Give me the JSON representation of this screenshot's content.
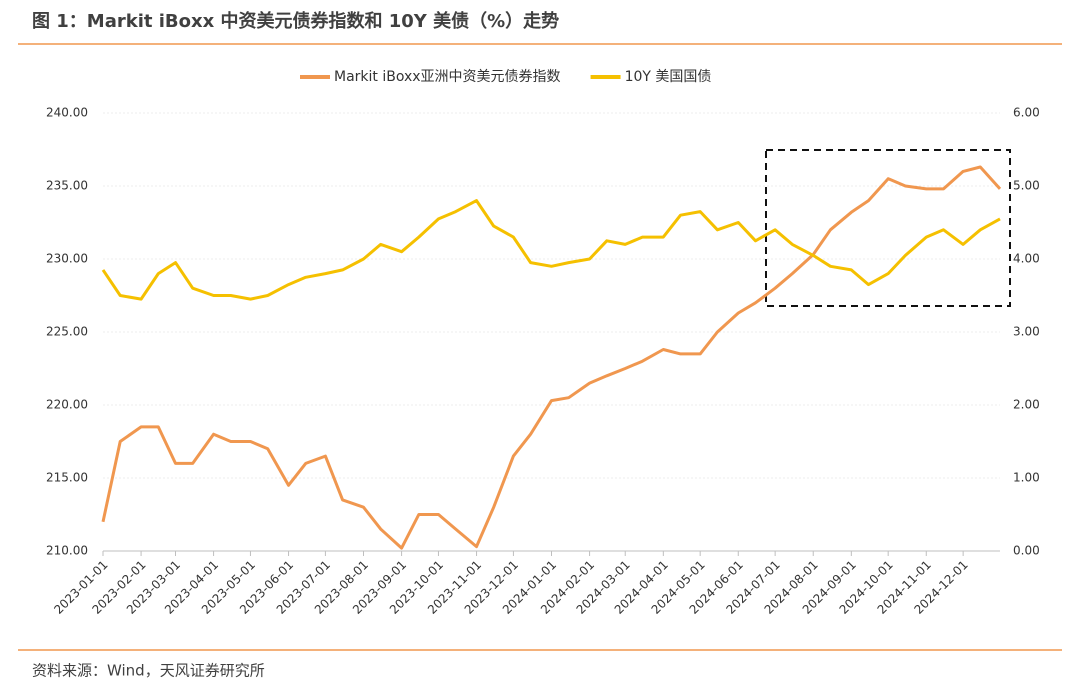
{
  "chart_data": {
    "type": "line",
    "title": "图 1：Markit iBoxx 中资美元债券指数和 10Y 美债（%）走势",
    "source": "资料来源：Wind，天风证券研究所",
    "x": [
      "2023-01-01",
      "2023-01-15",
      "2023-02-01",
      "2023-02-15",
      "2023-03-01",
      "2023-03-15",
      "2023-04-01",
      "2023-04-15",
      "2023-05-01",
      "2023-05-15",
      "2023-06-01",
      "2023-06-15",
      "2023-07-01",
      "2023-07-15",
      "2023-08-01",
      "2023-08-15",
      "2023-09-01",
      "2023-09-15",
      "2023-10-01",
      "2023-10-15",
      "2023-11-01",
      "2023-11-15",
      "2023-12-01",
      "2023-12-15",
      "2024-01-01",
      "2024-01-15",
      "2024-02-01",
      "2024-02-15",
      "2024-03-01",
      "2024-03-15",
      "2024-04-01",
      "2024-04-15",
      "2024-05-01",
      "2024-05-15",
      "2024-06-01",
      "2024-06-15",
      "2024-07-01",
      "2024-07-15",
      "2024-08-01",
      "2024-08-15",
      "2024-09-01",
      "2024-09-15",
      "2024-10-01",
      "2024-10-15",
      "2024-11-01",
      "2024-11-15",
      "2024-12-01",
      "2024-12-15",
      "2024-12-31"
    ],
    "series": [
      {
        "name": "Markit iBoxx亚洲中资美元债券指数",
        "color": "#f0974f",
        "axis": "y",
        "values": [
          212,
          217.5,
          218.5,
          218.5,
          216,
          216,
          218,
          217.5,
          217.5,
          217,
          214.5,
          216,
          216.5,
          213.5,
          213,
          211.5,
          210.2,
          212.5,
          212.5,
          211.5,
          210.3,
          213,
          216.5,
          218,
          220.3,
          220.5,
          221.5,
          222,
          222.5,
          223,
          223.8,
          223.5,
          223.5,
          225,
          226.3,
          227,
          228,
          229,
          230.3,
          232,
          233.2,
          234,
          235.5,
          235,
          234.8,
          234.8,
          236,
          236.3,
          234.8
        ]
      },
      {
        "name": "10Y 美国国债",
        "color": "#f5c000",
        "axis": "y2",
        "values": [
          3.85,
          3.5,
          3.45,
          3.8,
          3.95,
          3.6,
          3.5,
          3.5,
          3.45,
          3.5,
          3.65,
          3.75,
          3.8,
          3.85,
          4.0,
          4.2,
          4.1,
          4.3,
          4.55,
          4.65,
          4.8,
          4.45,
          4.3,
          3.95,
          3.9,
          3.95,
          4.0,
          4.25,
          4.2,
          4.3,
          4.3,
          4.6,
          4.65,
          4.4,
          4.5,
          4.25,
          4.4,
          4.2,
          4.05,
          3.9,
          3.85,
          3.65,
          3.8,
          4.05,
          4.3,
          4.4,
          4.2,
          4.4,
          4.55
        ]
      }
    ],
    "xlim": [
      "2023-01-01",
      "2024-12-31"
    ],
    "xticks": [
      "2023-01-01",
      "2023-02-01",
      "2023-03-01",
      "2023-04-01",
      "2023-05-01",
      "2023-06-01",
      "2023-07-01",
      "2023-08-01",
      "2023-09-01",
      "2023-10-01",
      "2023-11-01",
      "2023-12-01",
      "2024-01-01",
      "2024-02-01",
      "2024-03-01",
      "2024-04-01",
      "2024-05-01",
      "2024-06-01",
      "2024-07-01",
      "2024-08-01",
      "2024-09-01",
      "2024-10-01",
      "2024-11-01",
      "2024-12-01"
    ],
    "ylim": [
      210,
      240
    ],
    "yticks": [
      {
        "value": 210,
        "label": "210.00"
      },
      {
        "value": 215,
        "label": "215.00"
      },
      {
        "value": 220,
        "label": "220.00"
      },
      {
        "value": 225,
        "label": "225.00"
      },
      {
        "value": 230,
        "label": "230.00"
      },
      {
        "value": 235,
        "label": "235.00"
      },
      {
        "value": 240,
        "label": "240.00"
      }
    ],
    "y2lim": [
      0,
      6
    ],
    "y2ticks": [
      {
        "value": 0,
        "label": "0.00"
      },
      {
        "value": 1,
        "label": "1.00"
      },
      {
        "value": 2,
        "label": "2.00"
      },
      {
        "value": 3,
        "label": "3.00"
      },
      {
        "value": 4,
        "label": "4.00"
      },
      {
        "value": 5,
        "label": "5.00"
      },
      {
        "value": 6,
        "label": "6.00"
      }
    ],
    "grid": true,
    "legend": "top"
  }
}
